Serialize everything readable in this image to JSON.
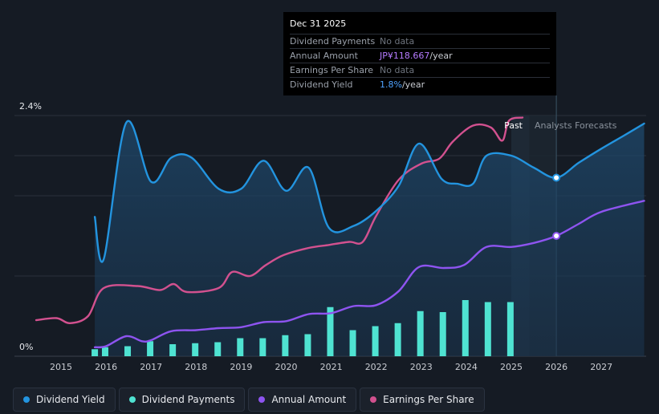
{
  "chart_data": {
    "type": "line",
    "y_axis": {
      "max_label": "2.4%",
      "min_label": "0%",
      "ylim": [
        0,
        2.4
      ]
    },
    "x_ticks": [
      "2015",
      "2016",
      "2017",
      "2018",
      "2019",
      "2020",
      "2021",
      "2022",
      "2023",
      "2024",
      "2025",
      "2026",
      "2027"
    ],
    "past_label": "Past",
    "forecast_label": "Analysts Forecasts",
    "series": [
      {
        "name": "Dividend Yield",
        "unit": "%",
        "color": "#2394df",
        "points": [
          [
            2015.75,
            1.39
          ],
          [
            2015.95,
            0.97
          ],
          [
            2016.45,
            2.33
          ],
          [
            2017.0,
            1.74
          ],
          [
            2017.45,
            1.98
          ],
          [
            2017.9,
            1.98
          ],
          [
            2018.5,
            1.67
          ],
          [
            2019.0,
            1.67
          ],
          [
            2019.5,
            1.95
          ],
          [
            2020.0,
            1.65
          ],
          [
            2020.5,
            1.88
          ],
          [
            2020.95,
            1.28
          ],
          [
            2021.5,
            1.3
          ],
          [
            2022.0,
            1.45
          ],
          [
            2022.5,
            1.7
          ],
          [
            2022.95,
            2.12
          ],
          [
            2023.45,
            1.77
          ],
          [
            2023.8,
            1.72
          ],
          [
            2024.15,
            1.72
          ],
          [
            2024.45,
            2.0
          ],
          [
            2025.0,
            2.0
          ],
          [
            2025.5,
            1.88
          ],
          [
            2026.0,
            1.78
          ],
          [
            2026.5,
            1.93
          ],
          [
            2027.0,
            2.07
          ],
          [
            2027.5,
            2.2
          ],
          [
            2027.95,
            2.32
          ]
        ]
      },
      {
        "name": "Earnings Per Share",
        "unit": "JP¥",
        "color": "#d2518f",
        "points": [
          [
            2014.45,
            0.36
          ],
          [
            2014.9,
            0.38
          ],
          [
            2015.2,
            0.33
          ],
          [
            2015.6,
            0.4
          ],
          [
            2015.95,
            0.68
          ],
          [
            2016.7,
            0.7
          ],
          [
            2017.2,
            0.66
          ],
          [
            2017.5,
            0.72
          ],
          [
            2017.8,
            0.64
          ],
          [
            2018.5,
            0.68
          ],
          [
            2018.8,
            0.84
          ],
          [
            2019.2,
            0.8
          ],
          [
            2019.55,
            0.91
          ],
          [
            2019.95,
            1.01
          ],
          [
            2020.5,
            1.08
          ],
          [
            2020.95,
            1.11
          ],
          [
            2021.4,
            1.14
          ],
          [
            2021.7,
            1.14
          ],
          [
            2022.0,
            1.4
          ],
          [
            2022.5,
            1.76
          ],
          [
            2023.0,
            1.92
          ],
          [
            2023.4,
            1.97
          ],
          [
            2023.7,
            2.14
          ],
          [
            2024.15,
            2.3
          ],
          [
            2024.55,
            2.28
          ],
          [
            2024.8,
            2.15
          ],
          [
            2024.95,
            2.35
          ],
          [
            2025.25,
            2.38
          ]
        ]
      },
      {
        "name": "Annual Amount",
        "unit": "JP¥",
        "color": "#8e54f0",
        "points": [
          [
            2015.75,
            0.09
          ],
          [
            2016.0,
            0.1
          ],
          [
            2016.45,
            0.2
          ],
          [
            2016.8,
            0.15
          ],
          [
            2017.0,
            0.16
          ],
          [
            2017.45,
            0.25
          ],
          [
            2018.0,
            0.26
          ],
          [
            2018.5,
            0.28
          ],
          [
            2019.0,
            0.29
          ],
          [
            2019.5,
            0.34
          ],
          [
            2020.0,
            0.35
          ],
          [
            2020.5,
            0.42
          ],
          [
            2021.0,
            0.43
          ],
          [
            2021.5,
            0.5
          ],
          [
            2022.0,
            0.51
          ],
          [
            2022.5,
            0.65
          ],
          [
            2022.95,
            0.89
          ],
          [
            2023.5,
            0.88
          ],
          [
            2023.95,
            0.91
          ],
          [
            2024.45,
            1.09
          ],
          [
            2025.0,
            1.09
          ],
          [
            2025.5,
            1.13
          ],
          [
            2026.0,
            1.2
          ],
          [
            2026.5,
            1.32
          ],
          [
            2027.0,
            1.44
          ],
          [
            2027.95,
            1.55
          ]
        ]
      }
    ],
    "bars": {
      "name": "Dividend Payments",
      "color": "#4fe3d2",
      "x": [
        2015.75,
        2015.98,
        2016.48,
        2016.98,
        2017.48,
        2017.98,
        2018.48,
        2018.98,
        2019.48,
        2019.98,
        2020.48,
        2020.98,
        2021.48,
        2021.98,
        2022.48,
        2022.98,
        2023.48,
        2023.98,
        2024.48,
        2024.98
      ],
      "values": [
        0.07,
        0.09,
        0.1,
        0.15,
        0.12,
        0.13,
        0.14,
        0.18,
        0.18,
        0.21,
        0.22,
        0.49,
        0.26,
        0.3,
        0.33,
        0.45,
        0.44,
        0.56,
        0.54,
        0.54
      ]
    },
    "highlight": {
      "x": 2026.0,
      "yield_value": 1.78,
      "amount_value": 1.2
    }
  },
  "tooltip": {
    "title": "Dec 31 2025",
    "rows": [
      {
        "label": "Dividend Payments",
        "value": "No data",
        "unit": ""
      },
      {
        "label": "Annual Amount",
        "value": "JP¥118.667",
        "unit": "/year"
      },
      {
        "label": "Earnings Per Share",
        "value": "No data",
        "unit": ""
      },
      {
        "label": "Dividend Yield",
        "value": "1.8%",
        "unit": "/year"
      }
    ]
  },
  "legend": [
    {
      "label": "Dividend Yield",
      "color": "#2394df"
    },
    {
      "label": "Dividend Payments",
      "color": "#4fe3d2"
    },
    {
      "label": "Annual Amount",
      "color": "#8e54f0"
    },
    {
      "label": "Earnings Per Share",
      "color": "#d2518f"
    }
  ]
}
